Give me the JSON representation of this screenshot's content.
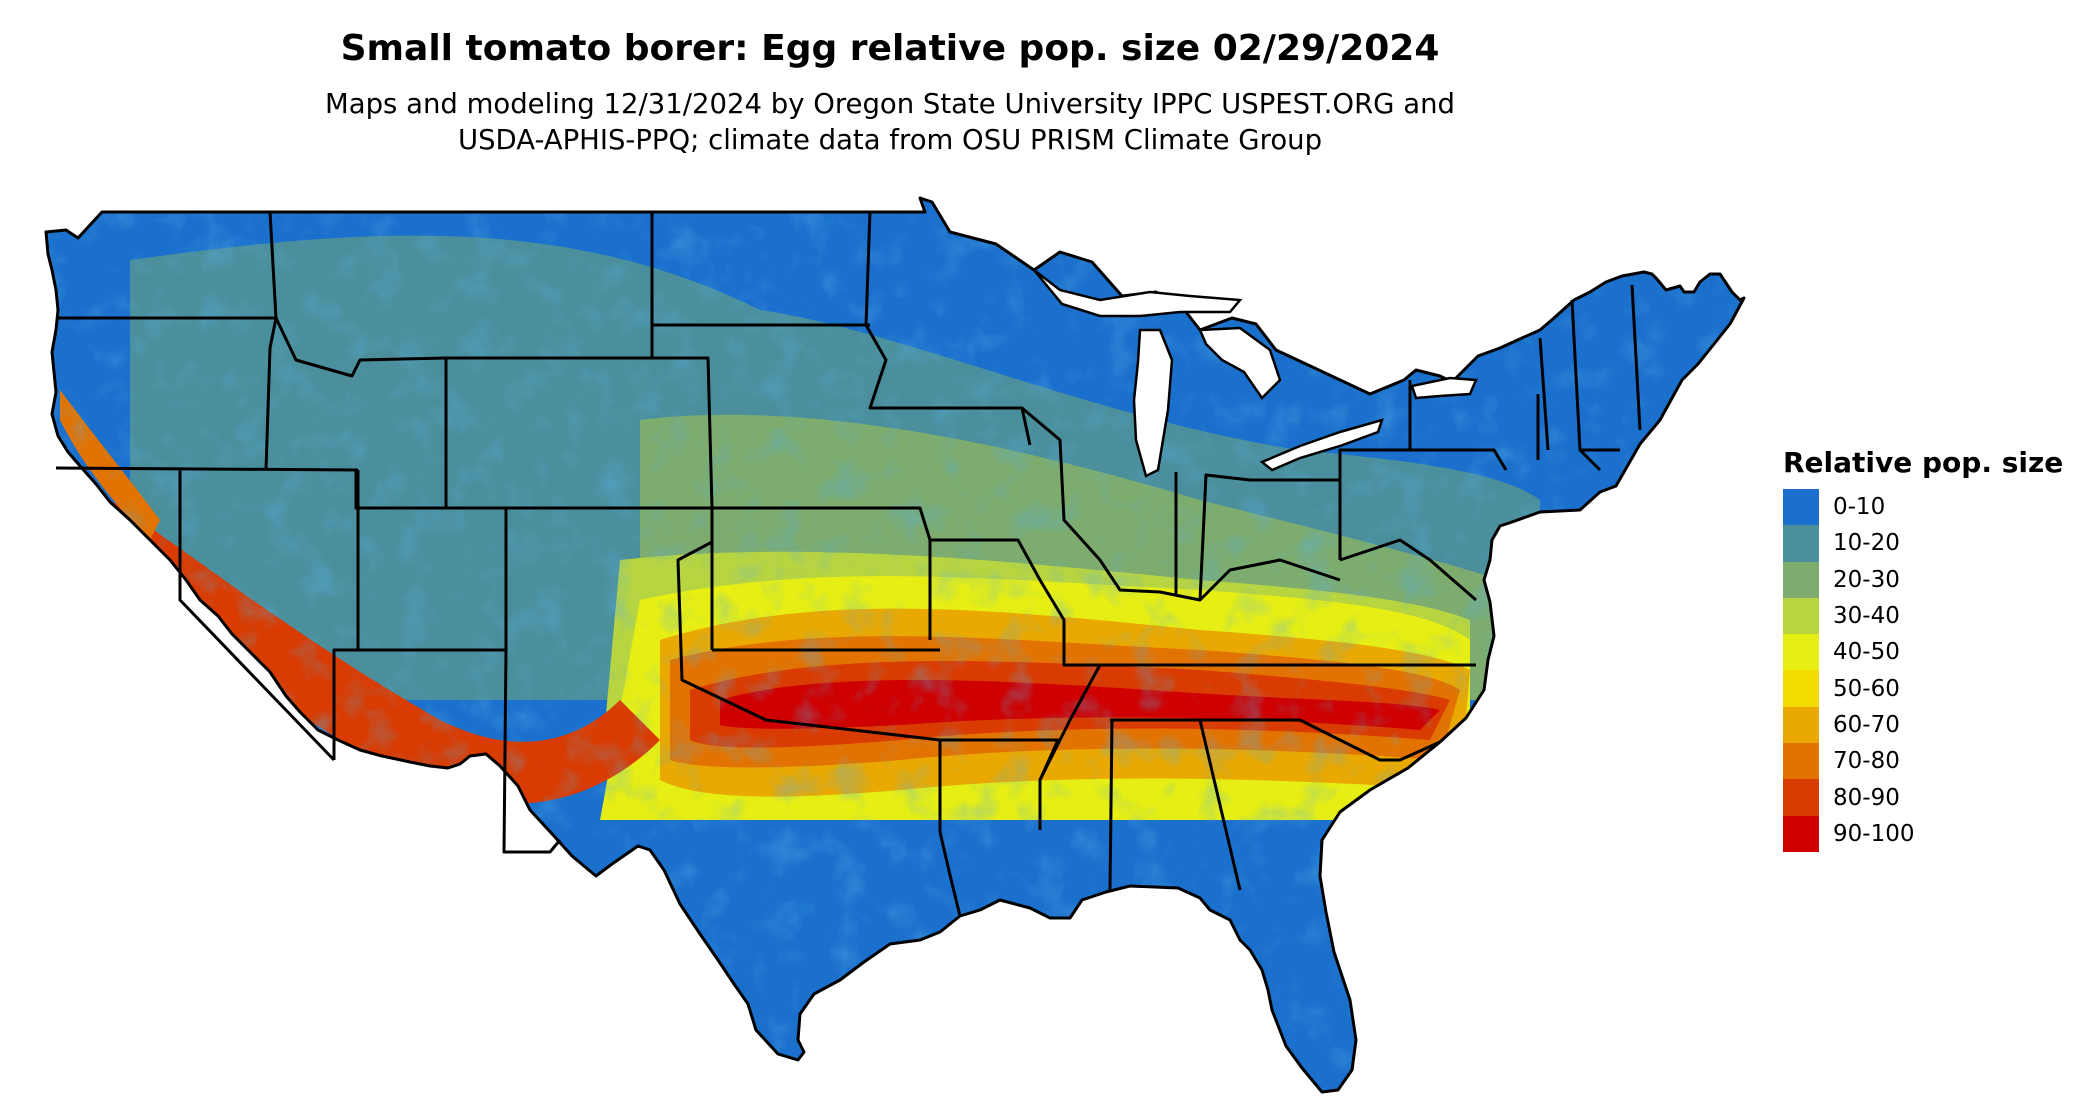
{
  "title": "Small tomato borer: Egg relative pop. size 02/29/2024",
  "subtitle_line1": "Maps and modeling 12/31/2024 by Oregon State University IPPC USPEST.ORG and",
  "subtitle_line2": "USDA-APHIS-PPQ; climate data from OSU PRISM Climate Group",
  "legend": {
    "title": "Relative pop. size",
    "classes": [
      {
        "label": "0-10",
        "color": "#1a70cc"
      },
      {
        "label": "10-20",
        "color": "#4b8f9c"
      },
      {
        "label": "20-30",
        "color": "#7dac6e"
      },
      {
        "label": "30-40",
        "color": "#b7d441"
      },
      {
        "label": "40-50",
        "color": "#e6ee14"
      },
      {
        "label": "50-60",
        "color": "#f5dc00"
      },
      {
        "label": "60-70",
        "color": "#eaa900"
      },
      {
        "label": "70-80",
        "color": "#e37300"
      },
      {
        "label": "80-90",
        "color": "#da3b00"
      },
      {
        "label": "90-100",
        "color": "#cf0000"
      }
    ]
  },
  "map": {
    "region": "Contiguous United States",
    "boundary_color": "#000000"
  }
}
